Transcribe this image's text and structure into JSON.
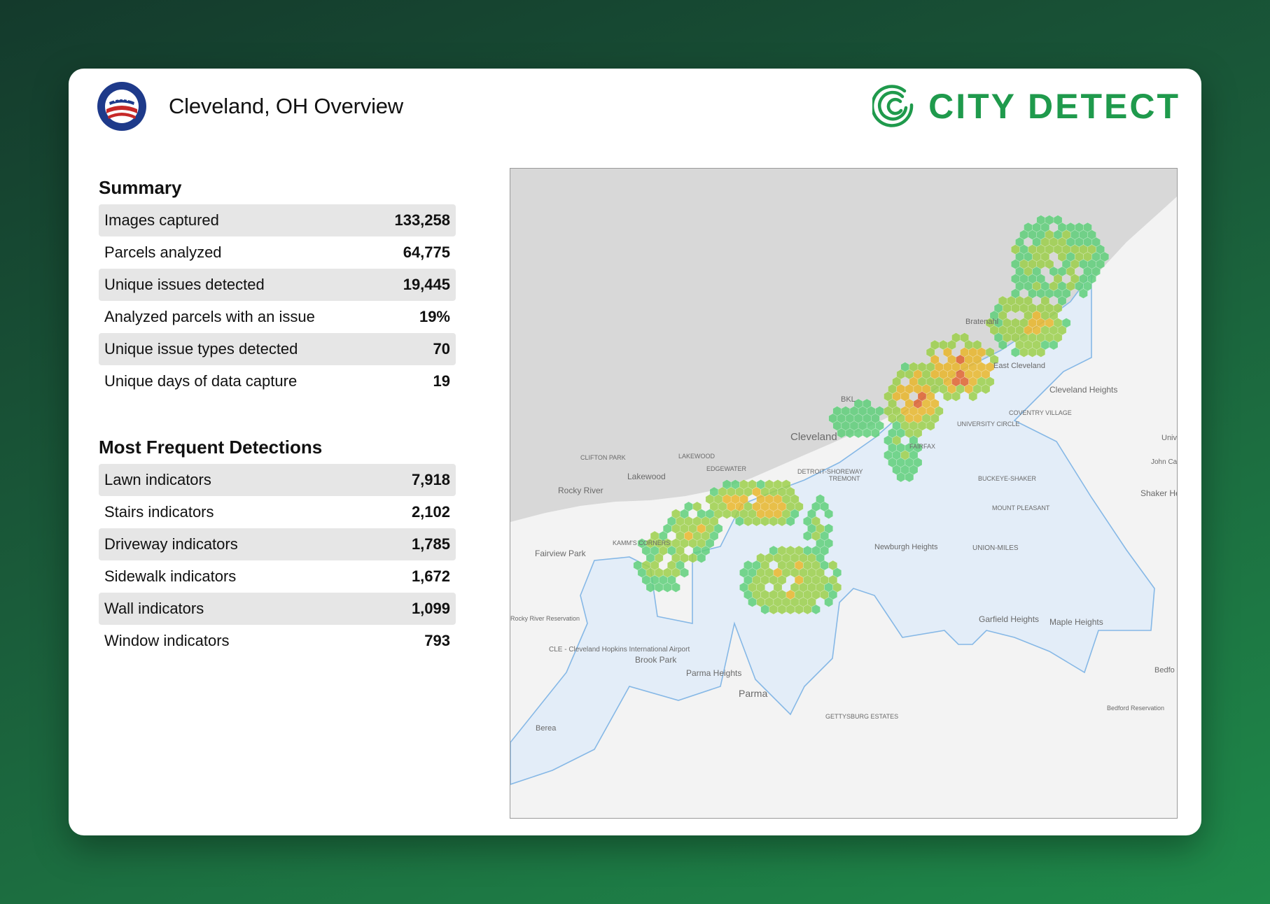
{
  "header": {
    "title": "Cleveland, OH Overview",
    "seal_text": "CITY OF CLEVELAND OHIO",
    "brand_name": "CITY DETECT"
  },
  "summary": {
    "title": "Summary",
    "rows": [
      {
        "label": "Images captured",
        "value": "133,258"
      },
      {
        "label": "Parcels analyzed",
        "value": "64,775"
      },
      {
        "label": "Unique issues detected",
        "value": "19,445"
      },
      {
        "label": "Analyzed parcels with an issue",
        "value": "19%"
      },
      {
        "label": "Unique issue types detected",
        "value": "70"
      },
      {
        "label": "Unique days of data capture",
        "value": "19"
      }
    ]
  },
  "detections": {
    "title": "Most Frequent Detections",
    "rows": [
      {
        "label": "Lawn indicators",
        "value": "7,918"
      },
      {
        "label": "Stairs indicators",
        "value": "2,102"
      },
      {
        "label": "Driveway indicators",
        "value": "1,785"
      },
      {
        "label": "Sidewalk indicators",
        "value": "1,672"
      },
      {
        "label": "Wall indicators",
        "value": "1,099"
      },
      {
        "label": "Window indicators",
        "value": "793"
      }
    ]
  },
  "map": {
    "labels": [
      "Bratenahl",
      "East Cleveland",
      "Cleveland Heights",
      "Univers Heigh",
      "John Carr",
      "Shaker He",
      "BKL",
      "COVENTRY VILLAGE",
      "UNIVERSITY CIRCLE",
      "Cleveland",
      "FAIRFAX",
      "BUCKEYE-SHAKER",
      "MOUNT PLEASANT",
      "UNION-MILES",
      "CLIFTON PARK",
      "LAKEWOOD",
      "EDGEWATER",
      "Lakewood",
      "DETROIT-SHOREWAY",
      "TREMONT",
      "Rocky River",
      "KAMM'S CORNERS",
      "Fairview Park",
      "Newburgh Heights",
      "Rocky River Reservation",
      "CLE - Cleveland Hopkins International Airport",
      "Brook Park",
      "Parma Heights",
      "Parma",
      "Garfield Heights",
      "Maple Heights",
      "Bedfo",
      "Bedford Reservation",
      "GETTYSBURG ESTATES",
      "Berea"
    ],
    "colors": {
      "water": "#d8d8d8",
      "land": "#f3f3f3",
      "boundary_fill": "#e3edf8",
      "boundary_stroke": "#86b8e6",
      "low": "#5fcf7a",
      "mid": "#9ccf4a",
      "high": "#e9b62a",
      "peak": "#e0632e"
    }
  }
}
